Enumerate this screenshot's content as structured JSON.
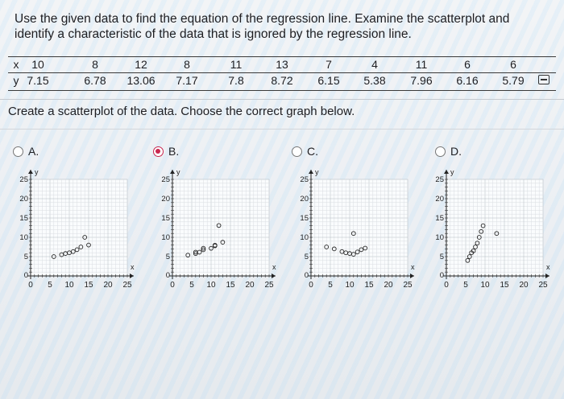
{
  "question": {
    "line1": "Use the given data to find the equation of the regression line. Examine the scatterplot and",
    "line2": "identify a characteristic of the data that is ignored by the regression line."
  },
  "table": {
    "x_label": "x",
    "y_label": "y",
    "x": [
      "10",
      "8",
      "12",
      "8",
      "11",
      "13",
      "7",
      "4",
      "11",
      "6",
      "6"
    ],
    "y": [
      "7.15",
      "6.78",
      "13.06",
      "7.17",
      "7.8",
      "8.72",
      "6.15",
      "5.38",
      "7.96",
      "6.16",
      "5.79"
    ]
  },
  "prompt": "Create a scatterplot of the data. Choose the correct graph below.",
  "options": [
    {
      "letter": "A.",
      "selected": false
    },
    {
      "letter": "B.",
      "selected": true
    },
    {
      "letter": "C.",
      "selected": false
    },
    {
      "letter": "D.",
      "selected": false
    }
  ],
  "graph": {
    "y_axis_label": "y",
    "x_axis_label": "x",
    "y_ticks": [
      "0",
      "5",
      "10",
      "15",
      "20",
      "25"
    ],
    "x_ticks": [
      "0",
      "5",
      "10",
      "15",
      "20",
      "25"
    ]
  },
  "chart_data": [
    {
      "type": "scatter",
      "option": "A",
      "xlim": [
        0,
        25
      ],
      "ylim": [
        0,
        25
      ],
      "points": [
        [
          6,
          5
        ],
        [
          8,
          5.5
        ],
        [
          9,
          5.8
        ],
        [
          10,
          6
        ],
        [
          11,
          6.3
        ],
        [
          12,
          6.8
        ],
        [
          13,
          7.5
        ],
        [
          15,
          8
        ],
        [
          14,
          10
        ]
      ]
    },
    {
      "type": "scatter",
      "option": "B",
      "xlim": [
        0,
        25
      ],
      "ylim": [
        0,
        25
      ],
      "points": [
        [
          10,
          7.15
        ],
        [
          8,
          6.78
        ],
        [
          12,
          13.06
        ],
        [
          8,
          7.17
        ],
        [
          11,
          7.8
        ],
        [
          13,
          8.72
        ],
        [
          7,
          6.15
        ],
        [
          4,
          5.38
        ],
        [
          11,
          7.96
        ],
        [
          6,
          6.16
        ],
        [
          6,
          5.79
        ]
      ]
    },
    {
      "type": "scatter",
      "option": "C",
      "xlim": [
        0,
        25
      ],
      "ylim": [
        0,
        25
      ],
      "points": [
        [
          4,
          7.5
        ],
        [
          6,
          7
        ],
        [
          8,
          6.3
        ],
        [
          9,
          6
        ],
        [
          10,
          5.8
        ],
        [
          11,
          5.6
        ],
        [
          12,
          6.2
        ],
        [
          13,
          6.8
        ],
        [
          14,
          7.2
        ],
        [
          11,
          11
        ]
      ]
    },
    {
      "type": "scatter",
      "option": "D",
      "xlim": [
        0,
        25
      ],
      "ylim": [
        0,
        25
      ],
      "points": [
        [
          5.5,
          4
        ],
        [
          6,
          5
        ],
        [
          6.5,
          6
        ],
        [
          7,
          6.5
        ],
        [
          7.5,
          7.5
        ],
        [
          8,
          8.5
        ],
        [
          8.5,
          10
        ],
        [
          9,
          11.5
        ],
        [
          9.5,
          13
        ],
        [
          13,
          11
        ]
      ]
    }
  ]
}
